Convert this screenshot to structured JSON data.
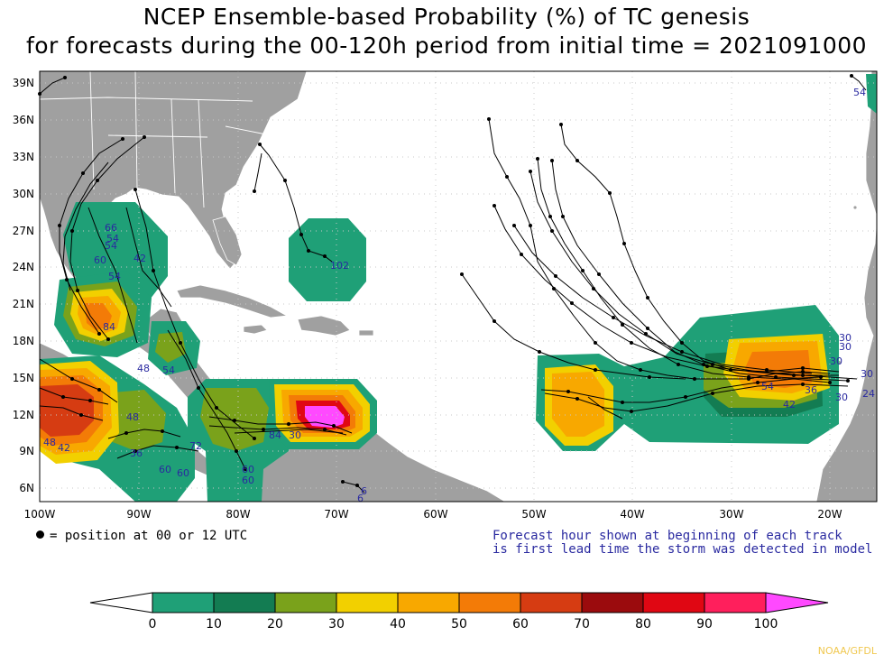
{
  "title": {
    "line1": "NCEP Ensemble-based Probability (%) of TC genesis",
    "line2": "for forecasts during the 00-120h period from initial time = 2021091000"
  },
  "axes": {
    "lat_labels": [
      "39N",
      "36N",
      "33N",
      "30N",
      "27N",
      "24N",
      "21N",
      "18N",
      "15N",
      "12N",
      "9N",
      "6N"
    ],
    "lon_labels": [
      "100W",
      "90W",
      "80W",
      "70W",
      "60W",
      "50W",
      "40W",
      "30W",
      "20W"
    ]
  },
  "legend_dot_text": "= position at 00 or 12 UTC",
  "forecast_note": {
    "line1": "Forecast hour shown at beginning of each track",
    "line2": "is first lead time the storm was detected in model"
  },
  "colorbar": {
    "ticks": [
      "0",
      "10",
      "20",
      "30",
      "40",
      "50",
      "60",
      "70",
      "80",
      "90",
      "100"
    ],
    "colors": [
      "#1fa077",
      "#137c52",
      "#7aa21b",
      "#f2d000",
      "#f8a800",
      "#f37b07",
      "#d63c12",
      "#9b0b0d",
      "#e00713",
      "#ff1f5c",
      "#ff49ff"
    ]
  },
  "track_labels": [
    "54",
    "102",
    "66",
    "54",
    "54",
    "42",
    "60",
    "54",
    "84",
    "48",
    "54",
    "30",
    "30",
    "30",
    "30",
    "24",
    "30",
    "42",
    "36",
    "54",
    "60",
    "60",
    "60",
    "48",
    "42",
    "48",
    "84",
    "30",
    "6",
    "6",
    "72",
    "36",
    "60"
  ],
  "credit": "NOAA/GFDL",
  "colors": {
    "land": "#a0a0a0",
    "ocean": "#ffffff",
    "border": "#ffffff",
    "grid": "#c8c8c8",
    "label_blue": "#2a2aa0"
  }
}
